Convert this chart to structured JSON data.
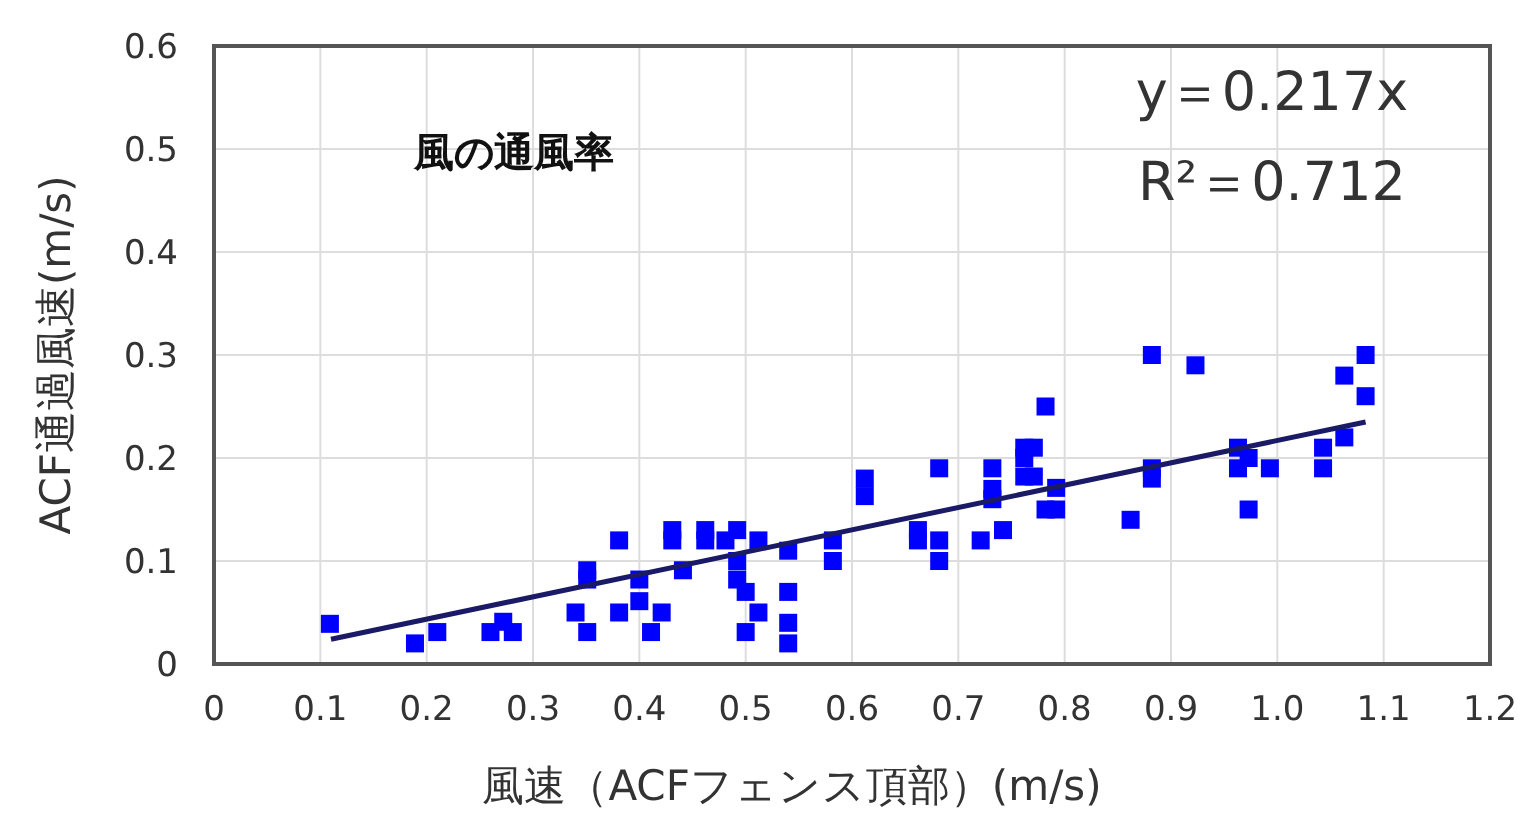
{
  "chart_data": {
    "type": "scatter",
    "xlabel": "風速（ACFフェンス頂部）(m/s)",
    "ylabel": "ACF通過風速(m/s)",
    "annotations": [
      "風の通風率",
      "y＝0.217x",
      "R²＝0.712"
    ],
    "xlim": [
      0,
      1.2
    ],
    "ylim": [
      0,
      0.6
    ],
    "xticks": [
      0,
      0.1,
      0.2,
      0.3,
      0.4,
      0.5,
      0.6,
      0.7,
      0.8,
      0.9,
      {
        "value": 1,
        "label": "1.0"
      },
      1.1,
      1.2
    ],
    "yticks": [
      0,
      0.1,
      0.2,
      0.3,
      0.4,
      0.5,
      0.6
    ],
    "grid": true,
    "series": [
      {
        "marker": "square",
        "color": "#0000ff",
        "x": [
          0.109,
          0.189,
          0.21,
          0.26,
          0.272,
          0.281,
          0.34,
          0.351,
          0.351,
          0.351,
          0.381,
          0.381,
          0.4,
          0.4,
          0.411,
          0.421,
          0.431,
          0.431,
          0.441,
          0.462,
          0.462,
          0.481,
          0.492,
          0.492,
          0.492,
          0.5,
          0.5,
          0.512,
          0.512,
          0.54,
          0.54,
          0.54,
          0.54,
          0.582,
          0.582,
          0.612,
          0.612,
          0.662,
          0.662,
          0.682,
          0.682,
          0.682,
          0.721,
          0.732,
          0.732,
          0.732,
          0.742,
          0.762,
          0.771,
          0.762,
          0.762,
          0.771,
          0.782,
          0.782,
          0.792,
          0.792,
          0.862,
          0.882,
          0.882,
          0.882,
          0.923,
          0.963,
          0.963,
          0.973,
          0.973,
          0.993,
          1.043,
          1.043,
          1.063,
          1.063,
          1.083,
          1.083
        ],
        "values": [
          0.039,
          0.02,
          0.031,
          0.031,
          0.041,
          0.031,
          0.05,
          0.091,
          0.082,
          0.031,
          0.12,
          0.05,
          0.082,
          0.061,
          0.031,
          0.05,
          0.13,
          0.12,
          0.091,
          0.13,
          0.12,
          0.12,
          0.13,
          0.1,
          0.082,
          0.07,
          0.031,
          0.12,
          0.05,
          0.11,
          0.07,
          0.04,
          0.02,
          0.12,
          0.1,
          0.18,
          0.163,
          0.13,
          0.12,
          0.19,
          0.12,
          0.1,
          0.12,
          0.19,
          0.17,
          0.16,
          0.13,
          0.21,
          0.21,
          0.2,
          0.182,
          0.182,
          0.25,
          0.15,
          0.15,
          0.171,
          0.14,
          0.3,
          0.19,
          0.18,
          0.29,
          0.21,
          0.19,
          0.2,
          0.15,
          0.19,
          0.21,
          0.19,
          0.28,
          0.22,
          0.3,
          0.26
        ]
      },
      {
        "type": "line",
        "color": "#1a1a66",
        "x": [
          0.11,
          1.083
        ],
        "values": [
          0.024,
          0.235
        ]
      }
    ]
  }
}
